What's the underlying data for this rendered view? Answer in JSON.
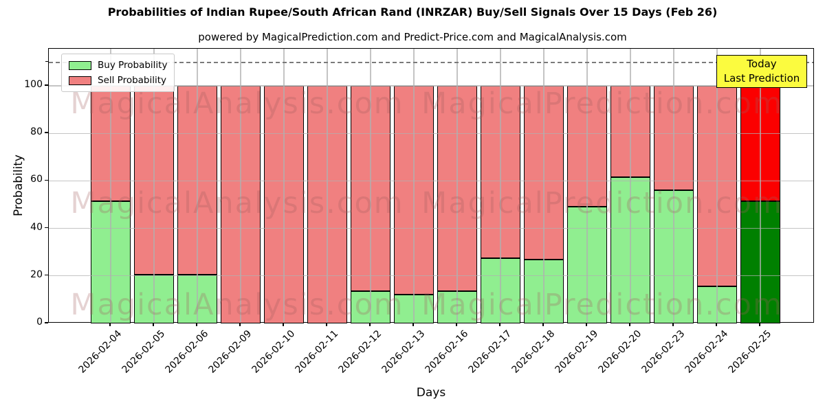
{
  "title": "Probabilities of Indian Rupee/South African Rand (INRZAR) Buy/Sell Signals Over 15 Days (Feb 26)",
  "subtitle": "powered by MagicalPrediction.com and Predict-Price.com and MagicalAnalysis.com",
  "axes": {
    "xlabel": "Days",
    "ylabel": "Probability",
    "yticks": [
      0,
      20,
      40,
      60,
      80,
      100
    ],
    "minor_yticks": [
      110
    ]
  },
  "legend": {
    "buy_label": "Buy Probability",
    "sell_label": "Sell Probability"
  },
  "annotation_box": {
    "line1": "Today",
    "line2": "Last Prediction",
    "bg_color": "#fbfb3f",
    "border_color": "#000000"
  },
  "watermarks": {
    "left_text": "MagicalAnalysis.com",
    "right_text": "MagicalPrediction.com"
  },
  "colors": {
    "buy": "#90ee90",
    "sell": "#f08080",
    "buy_today": "#008000",
    "sell_today": "#fb0000",
    "bar_edge": "#000000",
    "grid": "#b0b0b0",
    "dashed_line": "#7a7a7a"
  },
  "chart_data": {
    "type": "bar",
    "stacked": true,
    "title": "Probabilities of Indian Rupee/South African Rand (INRZAR) Buy/Sell Signals Over 15 Days (Feb 26)",
    "xlabel": "Days",
    "ylabel": "Probability",
    "ylim": [
      0,
      115.6
    ],
    "grid": true,
    "legend_position": "upper left",
    "dashed_line_y": 110,
    "categories": [
      "2026-02-04",
      "2026-02-05",
      "2026-02-06",
      "2026-02-09",
      "2026-02-10",
      "2026-02-11",
      "2026-02-12",
      "2026-02-13",
      "2026-02-16",
      "2026-02-17",
      "2026-02-18",
      "2026-02-19",
      "2026-02-20",
      "2026-02-23",
      "2026-02-24",
      "2026-02-25"
    ],
    "series": [
      {
        "name": "Buy Probability",
        "color": "#90ee90",
        "values": [
          51.5,
          20.5,
          20.5,
          0,
          0,
          0,
          13.5,
          12,
          13.5,
          27.5,
          27,
          49,
          61.5,
          56,
          15.5,
          51.5
        ]
      },
      {
        "name": "Sell Probability",
        "color": "#f08080",
        "values": [
          48.5,
          79.5,
          79.5,
          100,
          100,
          100,
          86.5,
          88,
          86.5,
          72.5,
          73,
          51,
          38.5,
          44,
          84.5,
          48.5
        ]
      }
    ],
    "today_highlight": {
      "category": "2026-02-25",
      "buy_color": "#008000",
      "sell_color": "#fb0000"
    }
  }
}
